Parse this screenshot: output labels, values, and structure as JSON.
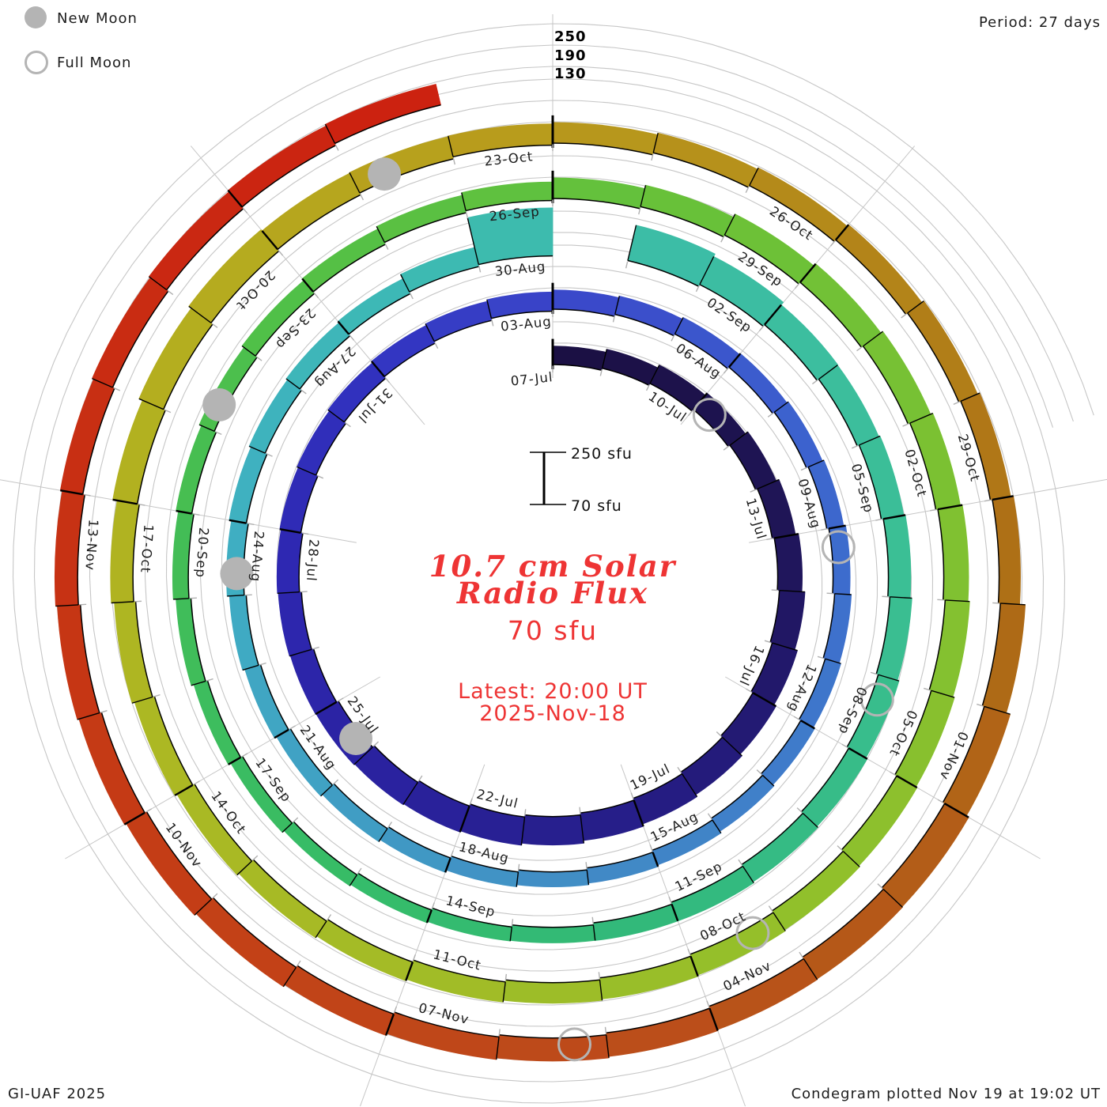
{
  "legend": {
    "new_moon_label": "New Moon",
    "full_moon_label": "Full Moon"
  },
  "header": {
    "period_label": "Period: 27 days"
  },
  "footer": {
    "credit": "GI-UAF 2025",
    "plotted_note": "Condegram plotted Nov 19 at 19:02 UT"
  },
  "center_text": {
    "title_line1": "10.7 cm Solar",
    "title_line2": "Radio Flux",
    "latest_value": "70 sfu",
    "latest_line1": "Latest: 20:00 UT",
    "latest_line2": "2025-Nov-18"
  },
  "scale_bar": {
    "top_label": "250 sfu",
    "bottom_label": "70 sfu"
  },
  "radial_scale_labels": [
    "250",
    "190",
    "130"
  ],
  "colors": {
    "accent_red": "#ee3434",
    "moon_gray": "#b4b4b4",
    "grid_gray": "#c6c6c6",
    "minor_tick_gray": "#b0b0b0",
    "tick_black": "#000000",
    "label_text": "#1d1d1d"
  },
  "chart_data": {
    "type": "bar",
    "subtype": "spiral-condegram",
    "title": "10.7 cm Solar Radio Flux",
    "start_date": "2025-07-07",
    "end_date": "2025-11-18",
    "period_days": 27,
    "baseline_sfu": 70,
    "grid_levels_sfu": [
      130,
      190,
      250
    ],
    "direction": "clockwise-from-top",
    "tick_labels": [
      "07-Jul",
      "10-Jul",
      "13-Jul",
      "16-Jul",
      "19-Jul",
      "22-Jul",
      "25-Jul",
      "28-Jul",
      "31-Jul",
      "03-Aug",
      "06-Aug",
      "09-Aug",
      "12-Aug",
      "15-Aug",
      "18-Aug",
      "21-Aug",
      "24-Aug",
      "27-Aug",
      "30-Aug",
      "02-Sep",
      "05-Sep",
      "08-Sep",
      "11-Sep",
      "14-Sep",
      "17-Sep",
      "20-Sep",
      "23-Sep",
      "26-Sep",
      "29-Sep",
      "02-Oct",
      "05-Oct",
      "08-Oct",
      "11-Oct",
      "14-Oct",
      "17-Oct",
      "20-Oct",
      "23-Oct",
      "26-Oct",
      "29-Oct",
      "01-Nov",
      "04-Nov",
      "07-Nov",
      "10-Nov",
      "13-Nov"
    ],
    "flux_sfu": [
      122,
      125,
      128,
      130,
      133,
      136,
      139,
      142,
      144,
      145,
      146,
      147,
      148,
      150,
      150,
      148,
      145,
      142,
      138,
      135,
      132,
      130,
      128,
      127,
      126,
      125,
      124,
      124,
      123,
      122,
      120,
      119,
      118,
      118,
      117,
      116,
      115,
      114,
      114,
      113,
      112,
      112,
      113,
      114,
      115,
      116,
      117,
      118,
      119,
      119,
      118,
      117,
      125,
      205,
      null,
      172,
      158,
      143,
      136,
      134,
      133,
      132,
      131,
      130,
      128,
      126,
      120,
      114,
      110,
      108,
      107,
      108,
      110,
      112,
      114,
      115,
      116,
      117,
      118,
      120,
      122,
      128,
      132,
      136,
      138,
      139,
      140,
      140,
      139,
      138,
      136,
      134,
      132,
      130,
      128,
      127,
      126,
      126,
      127,
      128,
      130,
      133,
      140,
      145,
      148,
      138,
      134,
      130,
      128,
      127,
      126,
      126,
      127,
      128,
      130,
      140,
      146,
      148,
      144,
      140,
      137,
      135,
      134,
      134,
      135,
      136,
      136,
      135,
      134,
      134,
      133,
      132,
      131,
      130,
      null
    ],
    "data_gaps": [
      "2025-08-30"
    ],
    "colormap_stops": [
      [
        0,
        "#1b1042"
      ],
      [
        6,
        "#1f1558"
      ],
      [
        12,
        "#261d86"
      ],
      [
        17,
        "#2a22a2"
      ],
      [
        21,
        "#2e29b4"
      ],
      [
        24,
        "#3233c0"
      ],
      [
        27,
        "#3a46c9"
      ],
      [
        31,
        "#3c5fce"
      ],
      [
        35,
        "#3e74cc"
      ],
      [
        40,
        "#418bc5"
      ],
      [
        44,
        "#40a0c4"
      ],
      [
        48,
        "#3fb0c2"
      ],
      [
        52,
        "#3db9b4"
      ],
      [
        56,
        "#3cbda4"
      ],
      [
        61,
        "#3bbf93"
      ],
      [
        66,
        "#32b97d"
      ],
      [
        70,
        "#35bc68"
      ],
      [
        74,
        "#41bd58"
      ],
      [
        78,
        "#52c046"
      ],
      [
        82,
        "#66c13a"
      ],
      [
        86,
        "#79c133"
      ],
      [
        91,
        "#8fc02c"
      ],
      [
        96,
        "#a3bc26"
      ],
      [
        100,
        "#adb722"
      ],
      [
        104,
        "#b5ad1f"
      ],
      [
        108,
        "#b89a1c"
      ],
      [
        112,
        "#b28118"
      ],
      [
        115,
        "#ad6d15"
      ],
      [
        118,
        "#b45a18"
      ],
      [
        121,
        "#bc4b1a"
      ],
      [
        124,
        "#c24317"
      ],
      [
        128,
        "#c63414"
      ],
      [
        131,
        "#c92a12"
      ],
      [
        134,
        "#cc2010"
      ]
    ],
    "moons": {
      "full": [
        {
          "label": "10-Jul",
          "day": 3
        },
        {
          "label": "09-Aug",
          "day": 33
        },
        {
          "label": "07-Sep",
          "day": 62
        },
        {
          "label": "07-Oct",
          "day": 92
        },
        {
          "label": "05-Nov",
          "day": 121
        }
      ],
      "new": [
        {
          "label": "24-Jul",
          "day": 17
        },
        {
          "label": "23-Aug",
          "day": 47
        },
        {
          "label": "21-Sep",
          "day": 76
        },
        {
          "label": "21-Oct",
          "day": 106
        }
      ]
    }
  }
}
